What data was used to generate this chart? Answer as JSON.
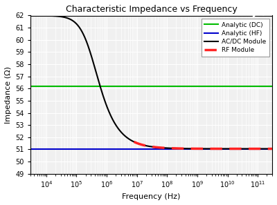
{
  "title": "Characteristic Impedance vs Frequency",
  "xlabel": "Frequency (Hz)",
  "ylabel": "Impedance (Ω)",
  "xlim": [
    3000.0,
    300000000000.0
  ],
  "ylim": [
    49,
    62
  ],
  "yticks": [
    49,
    50,
    51,
    52,
    53,
    54,
    55,
    56,
    57,
    58,
    59,
    60,
    61,
    62
  ],
  "analytic_dc_value": 56.2,
  "analytic_hf_value": 51.05,
  "dc_color": "#00bb00",
  "hf_color": "#0000cc",
  "acdc_color": "#000000",
  "rf_color": "#ff2222",
  "legend_labels": [
    "Analytic (DC)",
    "Analytic (HF)",
    "AC/DC Module",
    "RF Module"
  ],
  "bg_color": "#f0f0f0",
  "grid_color": "#ffffff",
  "f_start": 3000.0,
  "f_end": 300000000000.0,
  "Z_start": 62.0,
  "f0_acdc": 300000.0,
  "acdc_power": 1.8,
  "rf_start_freq": 8000000.0,
  "f0_rf": 300000.0,
  "rf_power": 1.8
}
